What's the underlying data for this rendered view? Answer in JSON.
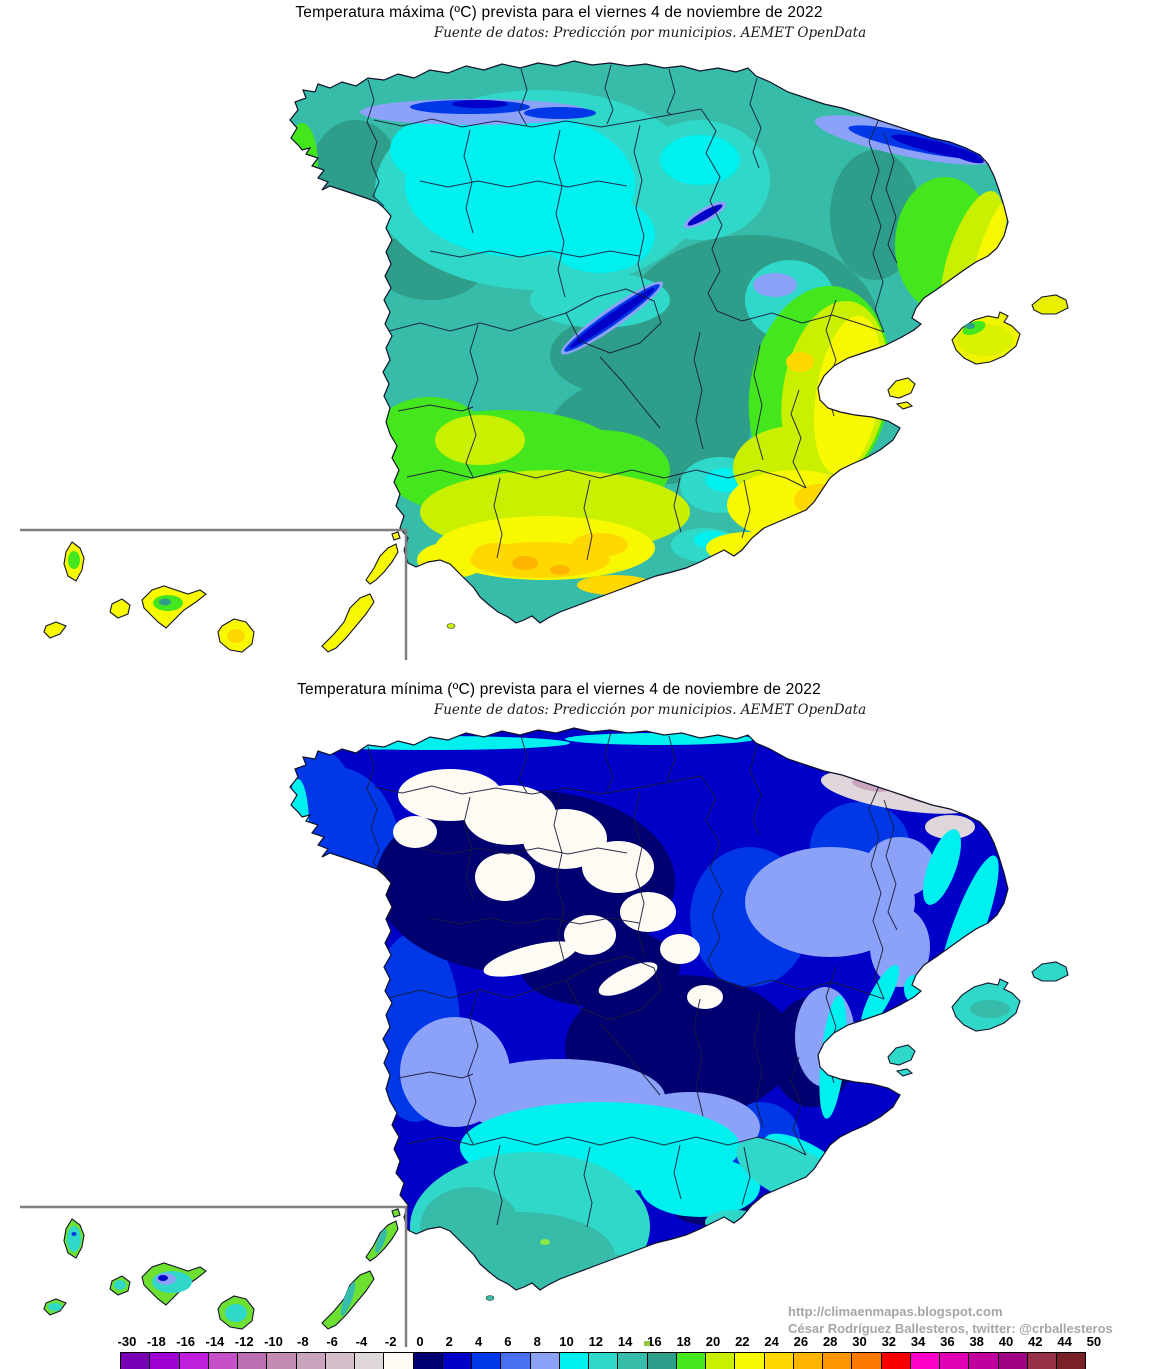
{
  "maps": [
    {
      "title": "Temperatura máxima (ºC) prevista para el viernes 4 de noviembre de 2022",
      "subtitle": "Fuente de datos: Predicción por municipios. AEMET OpenData"
    },
    {
      "title": "Temperatura mínima (ºC) prevista para el viernes 4 de noviembre de 2022",
      "subtitle": "Fuente de datos: Predicción por municipios. AEMET OpenData"
    }
  ],
  "attribution": {
    "url": "http://climaenmapas.blogspot.com",
    "author": "César Rodríguez Ballesteros, twitter: @crballesteros"
  },
  "scale": {
    "unit": "ºC",
    "labels": [
      "-30",
      "-18",
      "-16",
      "-14",
      "-12",
      "-10",
      "-8",
      "-6",
      "-4",
      "-2",
      "0",
      "2",
      "4",
      "6",
      "8",
      "10",
      "12",
      "14",
      "16",
      "18",
      "20",
      "22",
      "24",
      "26",
      "28",
      "30",
      "32",
      "34",
      "36",
      "38",
      "40",
      "42",
      "44",
      "50"
    ],
    "colors": [
      "#7800B4",
      "#9C00D2",
      "#C020DC",
      "#C650C8",
      "#BC6EB2",
      "#C28CB2",
      "#CAA4BC",
      "#D4BECA",
      "#DED6DA",
      "#FDFBF4",
      "#000070",
      "#0000C8",
      "#0038E8",
      "#4870F0",
      "#8CA2F8",
      "#00F0F0",
      "#2FD8C8",
      "#36BCA8",
      "#2E9D89",
      "#44E61E",
      "#C8F000",
      "#F8F800",
      "#FFD800",
      "#FFB400",
      "#FF9600",
      "#FF7800",
      "#F80000",
      "#FF00C8",
      "#E100B4",
      "#C0009E",
      "#A00082",
      "#963046",
      "#7A2028"
    ]
  }
}
